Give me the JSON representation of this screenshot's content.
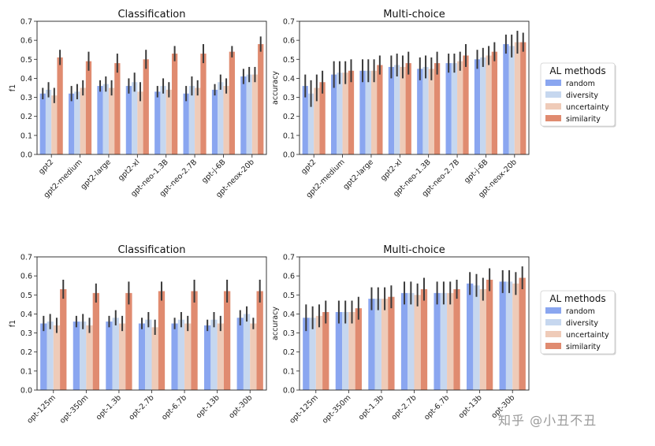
{
  "legend": {
    "title": "AL methods",
    "items": [
      {
        "name": "random",
        "color": "#8aa6f0"
      },
      {
        "name": "diversity",
        "color": "#c6d7ef"
      },
      {
        "name": "uncertainty",
        "color": "#efcbb8"
      },
      {
        "name": "similarity",
        "color": "#e08b70"
      }
    ]
  },
  "watermark": "知乎 @小丑不丑",
  "chart_data": [
    {
      "type": "bar",
      "title": "Classification",
      "xlabel": "",
      "ylabel": "f1",
      "ylim": [
        0,
        0.7
      ],
      "yticks": [
        "0.0",
        "0.1",
        "0.2",
        "0.3",
        "0.4",
        "0.5",
        "0.6",
        "0.7"
      ],
      "categories": [
        "gpt2",
        "gpt2-medium",
        "gpt2-large",
        "gpt2-xl",
        "gpt-neo-1.3B",
        "gpt-neo-2.7B",
        "gpt-j-6B",
        "gpt-neox-20b"
      ],
      "series": [
        {
          "name": "random",
          "values": [
            0.32,
            0.32,
            0.36,
            0.36,
            0.33,
            0.32,
            0.34,
            0.41
          ],
          "err": [
            0.03,
            0.04,
            0.03,
            0.04,
            0.03,
            0.04,
            0.03,
            0.04
          ]
        },
        {
          "name": "diversity",
          "values": [
            0.34,
            0.33,
            0.37,
            0.38,
            0.36,
            0.36,
            0.38,
            0.42
          ],
          "err": [
            0.04,
            0.04,
            0.04,
            0.05,
            0.04,
            0.05,
            0.04,
            0.04
          ]
        },
        {
          "name": "uncertainty",
          "values": [
            0.31,
            0.35,
            0.35,
            0.33,
            0.34,
            0.35,
            0.36,
            0.42
          ],
          "err": [
            0.04,
            0.04,
            0.04,
            0.05,
            0.04,
            0.04,
            0.04,
            0.04
          ]
        },
        {
          "name": "similarity",
          "values": [
            0.51,
            0.49,
            0.48,
            0.5,
            0.53,
            0.53,
            0.54,
            0.58
          ],
          "err": [
            0.04,
            0.05,
            0.05,
            0.05,
            0.04,
            0.05,
            0.03,
            0.04
          ]
        }
      ]
    },
    {
      "type": "bar",
      "title": "Multi-choice",
      "xlabel": "",
      "ylabel": "accuracy",
      "ylim": [
        0,
        0.7
      ],
      "yticks": [
        "0.0",
        "0.1",
        "0.2",
        "0.3",
        "0.4",
        "0.5",
        "0.6",
        "0.7"
      ],
      "categories": [
        "gpt2",
        "gpt2-medium",
        "gpt2-large",
        "gpt2-xl",
        "gpt-neo-1.3B",
        "gpt-neo-2.7B",
        "gpt-j-6B",
        "gpt-neox-20b"
      ],
      "series": [
        {
          "name": "random",
          "values": [
            0.36,
            0.42,
            0.44,
            0.46,
            0.45,
            0.48,
            0.5,
            0.58
          ],
          "err": [
            0.06,
            0.07,
            0.06,
            0.06,
            0.06,
            0.05,
            0.05,
            0.05
          ]
        },
        {
          "name": "diversity",
          "values": [
            0.32,
            0.43,
            0.44,
            0.47,
            0.46,
            0.48,
            0.51,
            0.57
          ],
          "err": [
            0.07,
            0.06,
            0.06,
            0.06,
            0.06,
            0.05,
            0.05,
            0.06
          ]
        },
        {
          "name": "uncertainty",
          "values": [
            0.35,
            0.43,
            0.44,
            0.46,
            0.45,
            0.49,
            0.52,
            0.59
          ],
          "err": [
            0.07,
            0.06,
            0.06,
            0.06,
            0.06,
            0.05,
            0.05,
            0.06
          ]
        },
        {
          "name": "similarity",
          "values": [
            0.38,
            0.44,
            0.47,
            0.48,
            0.48,
            0.52,
            0.54,
            0.59
          ],
          "err": [
            0.06,
            0.06,
            0.05,
            0.06,
            0.06,
            0.06,
            0.05,
            0.05
          ]
        }
      ]
    },
    {
      "type": "bar",
      "title": "Classification",
      "xlabel": "",
      "ylabel": "f1",
      "ylim": [
        0,
        0.7
      ],
      "yticks": [
        "0.0",
        "0.1",
        "0.2",
        "0.3",
        "0.4",
        "0.5",
        "0.6",
        "0.7"
      ],
      "categories": [
        "opt-125m",
        "opt-350m",
        "opt-1.3b",
        "opt-2.7b",
        "opt-6.7b",
        "opt-13b",
        "opt-30b"
      ],
      "series": [
        {
          "name": "random",
          "values": [
            0.35,
            0.36,
            0.36,
            0.35,
            0.35,
            0.34,
            0.38
          ],
          "err": [
            0.04,
            0.03,
            0.03,
            0.03,
            0.03,
            0.03,
            0.04
          ]
        },
        {
          "name": "diversity",
          "values": [
            0.36,
            0.36,
            0.38,
            0.37,
            0.37,
            0.37,
            0.4
          ],
          "err": [
            0.04,
            0.04,
            0.04,
            0.04,
            0.04,
            0.04,
            0.04
          ]
        },
        {
          "name": "uncertainty",
          "values": [
            0.34,
            0.34,
            0.35,
            0.33,
            0.35,
            0.35,
            0.35
          ],
          "err": [
            0.04,
            0.04,
            0.04,
            0.04,
            0.04,
            0.04,
            0.03
          ]
        },
        {
          "name": "similarity",
          "values": [
            0.53,
            0.51,
            0.51,
            0.52,
            0.52,
            0.52,
            0.52
          ],
          "err": [
            0.05,
            0.05,
            0.06,
            0.05,
            0.06,
            0.06,
            0.06
          ]
        }
      ]
    },
    {
      "type": "bar",
      "title": "Multi-choice",
      "xlabel": "",
      "ylabel": "accuracy",
      "ylim": [
        0,
        0.7
      ],
      "yticks": [
        "0.0",
        "0.1",
        "0.2",
        "0.3",
        "0.4",
        "0.5",
        "0.6",
        "0.7"
      ],
      "categories": [
        "opt-125m",
        "opt-350m",
        "opt-1.3b",
        "opt-2.7b",
        "opt-6.7b",
        "opt-13b",
        "opt-30b"
      ],
      "series": [
        {
          "name": "random",
          "values": [
            0.38,
            0.41,
            0.48,
            0.51,
            0.51,
            0.56,
            0.57
          ],
          "err": [
            0.07,
            0.06,
            0.06,
            0.06,
            0.06,
            0.06,
            0.06
          ]
        },
        {
          "name": "diversity",
          "values": [
            0.38,
            0.41,
            0.48,
            0.51,
            0.51,
            0.55,
            0.57
          ],
          "err": [
            0.06,
            0.06,
            0.06,
            0.06,
            0.06,
            0.06,
            0.06
          ]
        },
        {
          "name": "uncertainty",
          "values": [
            0.39,
            0.41,
            0.48,
            0.5,
            0.51,
            0.53,
            0.56
          ],
          "err": [
            0.06,
            0.06,
            0.06,
            0.06,
            0.06,
            0.06,
            0.06
          ]
        },
        {
          "name": "similarity",
          "values": [
            0.41,
            0.43,
            0.49,
            0.53,
            0.53,
            0.58,
            0.59
          ],
          "err": [
            0.06,
            0.06,
            0.06,
            0.06,
            0.05,
            0.06,
            0.06
          ]
        }
      ]
    }
  ]
}
